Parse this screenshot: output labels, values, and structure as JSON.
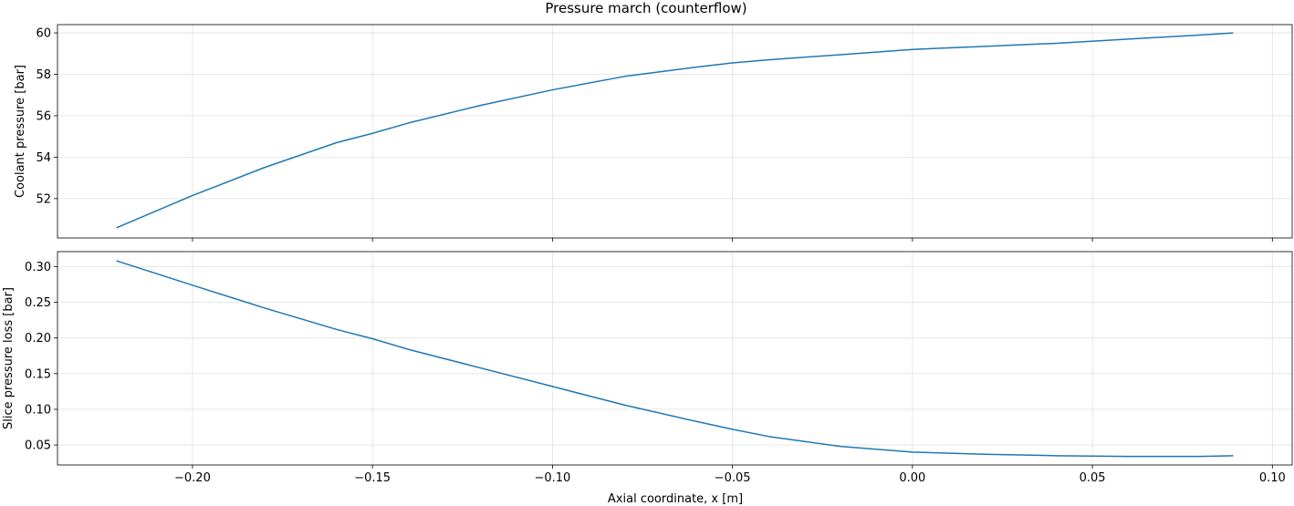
{
  "chart_data": {
    "type": "line",
    "title": "Pressure march (counterflow)",
    "xlabel": "Axial coordinate, x [m]",
    "xlim": [
      -0.2375,
      0.1055
    ],
    "xticks": [
      -0.2,
      -0.15,
      -0.1,
      -0.05,
      0.0,
      0.05,
      0.1
    ],
    "xtick_labels": [
      "−0.20",
      "−0.15",
      "−0.10",
      "−0.05",
      "0.00",
      "0.05",
      "0.10"
    ],
    "grid": true,
    "line_color": "#1f77b4",
    "subplots": [
      {
        "ylabel": "Coolant pressure [bar]",
        "ylim": [
          50.1,
          60.4
        ],
        "yticks": [
          52,
          54,
          56,
          58,
          60
        ],
        "ytick_labels": [
          "52",
          "54",
          "56",
          "58",
          "60"
        ],
        "series": [
          {
            "x": [
              -0.221,
              -0.2,
              -0.18,
              -0.16,
              -0.15,
              -0.14,
              -0.12,
              -0.1,
              -0.08,
              -0.06,
              -0.05,
              -0.04,
              -0.02,
              0.0,
              0.02,
              0.04,
              0.06,
              0.08,
              0.089
            ],
            "values": [
              50.6,
              52.15,
              53.5,
              54.7,
              55.15,
              55.65,
              56.5,
              57.25,
              57.9,
              58.35,
              58.55,
              58.7,
              58.95,
              59.2,
              59.35,
              59.5,
              59.7,
              59.9,
              60.0
            ]
          }
        ]
      },
      {
        "ylabel": "Slice pressure loss [bar]",
        "ylim": [
          0.022,
          0.321
        ],
        "yticks": [
          0.05,
          0.1,
          0.15,
          0.2,
          0.25,
          0.3
        ],
        "ytick_labels": [
          "0.05",
          "0.10",
          "0.15",
          "0.20",
          "0.25",
          "0.30"
        ],
        "series": [
          {
            "x": [
              -0.221,
              -0.2,
              -0.18,
              -0.16,
              -0.15,
              -0.14,
              -0.12,
              -0.1,
              -0.08,
              -0.06,
              -0.05,
              -0.04,
              -0.02,
              0.0,
              0.02,
              0.04,
              0.06,
              0.08,
              0.089
            ],
            "values": [
              0.308,
              0.274,
              0.242,
              0.212,
              0.199,
              0.184,
              0.158,
              0.132,
              0.106,
              0.083,
              0.072,
              0.062,
              0.048,
              0.04,
              0.037,
              0.035,
              0.034,
              0.034,
              0.035
            ]
          }
        ]
      }
    ]
  }
}
